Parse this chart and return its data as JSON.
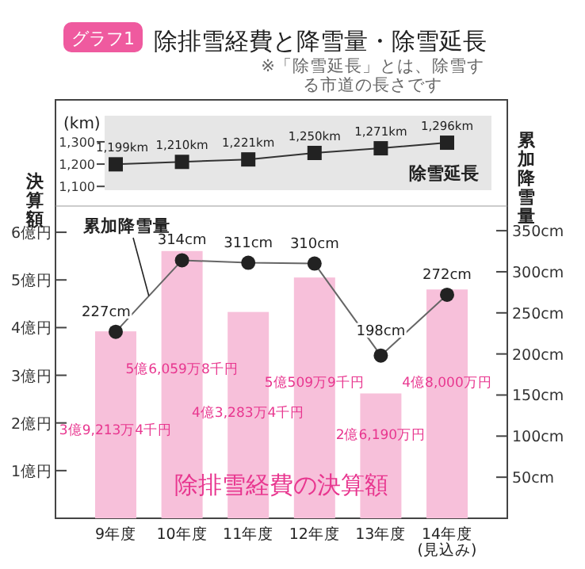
{
  "chart_data": [
    {
      "type": "line",
      "title": "除排雪経費と降雪量・除雪延長",
      "annotations": [
        "グラフ1",
        "※「除雪延長」とは、除雪する市道の長さです"
      ],
      "ylabel": "(km)",
      "categories": [
        null,
        null,
        null,
        null,
        null,
        null
      ],
      "tick_labels": "y",
      "marker": "square",
      "series": [
        {
          "name": "除雪延長",
          "color": "#333333",
          "values": [
            1199,
            1210,
            1221,
            1250,
            1271,
            1296
          ],
          "value_labels": [
            "1,199km",
            "1,210km",
            "1,221km",
            "1,250km",
            "1,271km",
            "1,296km"
          ]
        }
      ],
      "ylim": [
        1083,
        1417
      ],
      "yticks": [
        {
          "value": 1100,
          "label": "1,100"
        },
        {
          "value": 1200,
          "label": "1,200"
        },
        {
          "value": 1300,
          "label": "1,300"
        }
      ]
    },
    {
      "type": "bar",
      "ylabel": "決算額",
      "y2label": "累加降雪量",
      "categories": [
        "9年度",
        "10年度",
        "11年度",
        "12年度",
        "13年度",
        "14年度\n(見込み)"
      ],
      "marker": "circle",
      "annotations": [
        "3億9,213万4千円",
        "5億6,059万8千円",
        "4億3,283万4千円",
        "5億509万9千円",
        "2億6,190万円",
        "4億8,000万円"
      ],
      "series": [
        {
          "name": "除排雪経費の決算額",
          "color": "#f7c0da",
          "values": [
            3.92134,
            5.60598,
            4.32834,
            5.05099,
            2.619,
            4.8
          ]
        },
        {
          "name": "累加降雪量",
          "type": "line",
          "axis": "y2",
          "color": "#666666",
          "values": [
            227,
            314,
            311,
            310,
            198,
            272
          ],
          "value_labels": [
            "227cm",
            "314cm",
            "311cm",
            "310cm",
            "198cm",
            "272cm"
          ]
        }
      ],
      "ylim": [
        0,
        6.55
      ],
      "yticks": [
        {
          "value": 1,
          "label": "1億円"
        },
        {
          "value": 2,
          "label": "2億円"
        },
        {
          "value": 3,
          "label": "3億円"
        },
        {
          "value": 4,
          "label": "4億円"
        },
        {
          "value": 5,
          "label": "5億円"
        },
        {
          "value": 6,
          "label": "6億円"
        }
      ],
      "y2lim": [
        0,
        380
      ],
      "y2ticks": [
        {
          "value": 50,
          "label": "50cm"
        },
        {
          "value": 100,
          "label": "100cm"
        },
        {
          "value": 150,
          "label": "150cm"
        },
        {
          "value": 200,
          "label": "200cm"
        },
        {
          "value": 250,
          "label": "250cm"
        },
        {
          "value": 300,
          "label": "300cm"
        },
        {
          "value": 350,
          "label": "350cm"
        }
      ]
    }
  ]
}
